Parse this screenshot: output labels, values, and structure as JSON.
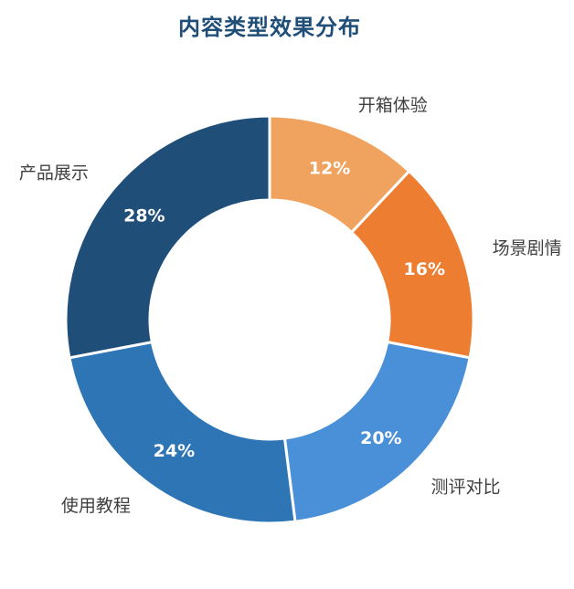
{
  "chart_data": {
    "type": "pie",
    "variant": "donut",
    "title": "内容类型效果分布",
    "categories": [
      "开箱体验",
      "场景剧情",
      "测评对比",
      "使用教程",
      "产品展示"
    ],
    "values": [
      12,
      16,
      20,
      24,
      28
    ],
    "value_labels": [
      "12%",
      "16%",
      "20%",
      "24%",
      "28%"
    ],
    "colors": [
      "#f0a35e",
      "#ed7d31",
      "#4a90d9",
      "#2e75b6",
      "#1f4e79"
    ],
    "start_angle_deg": 0,
    "direction": "clockwise",
    "legend": "none"
  }
}
